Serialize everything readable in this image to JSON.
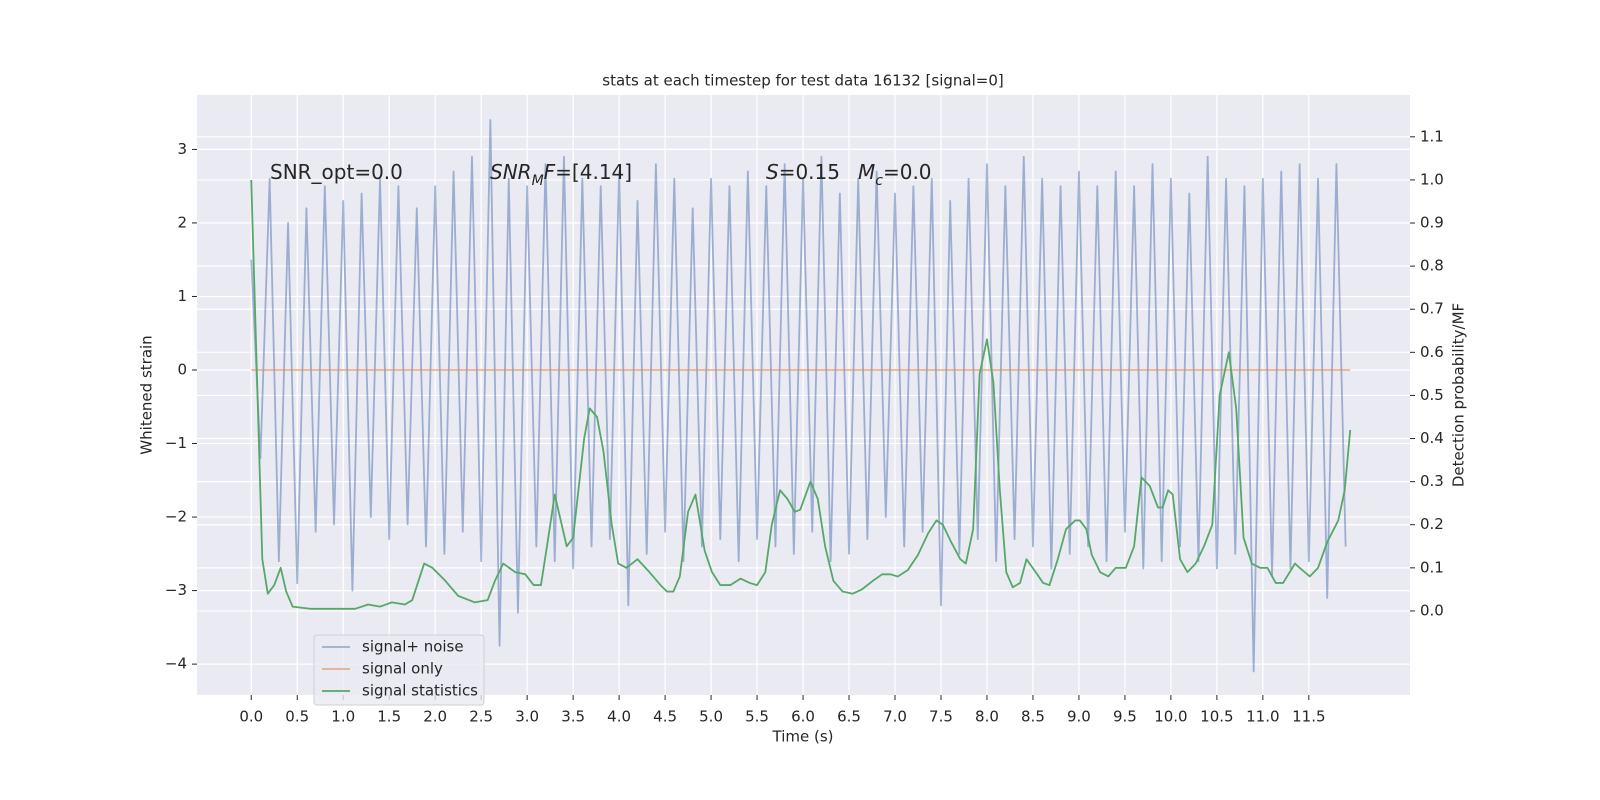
{
  "chart_data": {
    "type": "line",
    "title": "stats at each timestep for test data 16132 [signal=0]",
    "xlabel": "Time (s)",
    "ylabel": "Whitened strain",
    "y2label": "Detection probability/MF",
    "annotations": [
      [
        {
          "text": "SNR_opt=0.0"
        }
      ],
      [
        {
          "text": "SNR",
          "italic": true
        },
        {
          "text": "M",
          "italic": true,
          "sub": true
        },
        {
          "text": "F",
          "italic": true
        },
        {
          "text": "=[4.14]"
        }
      ],
      [
        {
          "text": "S",
          "italic": true
        },
        {
          "text": "=0.15"
        }
      ],
      [
        {
          "text": "M",
          "italic": true
        },
        {
          "text": "c",
          "italic": true,
          "sub": true
        },
        {
          "text": "=0.0"
        }
      ]
    ],
    "xlim": [
      -0.59,
      12.6
    ],
    "ylim": [
      -4.42,
      3.74
    ],
    "y2lim": [
      -0.195,
      1.197
    ],
    "xticks": [
      {
        "value": 0,
        "label": "0.0"
      },
      0.5,
      {
        "value": 1,
        "label": "1.0"
      },
      1.5,
      {
        "value": 2,
        "label": "2.0"
      },
      2.5,
      {
        "value": 3,
        "label": "3.0"
      },
      3.5,
      {
        "value": 4,
        "label": "4.0"
      },
      4.5,
      {
        "value": 5,
        "label": "5.0"
      },
      5.5,
      {
        "value": 6,
        "label": "6.0"
      },
      6.5,
      {
        "value": 7,
        "label": "7.0"
      },
      7.5,
      {
        "value": 8,
        "label": "8.0"
      },
      8.5,
      {
        "value": 9,
        "label": "9.0"
      },
      9.5,
      {
        "value": 10,
        "label": "10.0"
      },
      10.5,
      {
        "value": 11,
        "label": "11.0"
      },
      11.5
    ],
    "yticks": [
      {
        "value": -4,
        "label": "−4"
      },
      {
        "value": -3,
        "label": "−3"
      },
      {
        "value": -2,
        "label": "−2"
      },
      {
        "value": -1,
        "label": "−1"
      },
      0,
      1,
      2,
      3
    ],
    "y2ticks": [
      {
        "value": 0,
        "label": "0.0"
      },
      0.1,
      0.2,
      0.3,
      0.4,
      0.5,
      0.6,
      0.7,
      0.8,
      0.9,
      {
        "value": 1,
        "label": "1.0"
      },
      1.1
    ],
    "grid": true,
    "legend": "lower left",
    "series": [
      {
        "name": "signal+ noise",
        "color": "#4c72b0",
        "opacity": 0.5,
        "x": [
          0,
          0.1,
          0.2,
          0.3,
          0.4,
          0.5,
          0.6,
          0.7,
          0.8,
          0.9,
          1,
          1.1,
          1.2,
          1.3,
          1.4,
          1.5,
          1.6,
          1.7,
          1.8,
          1.9,
          2,
          2.1,
          2.2,
          2.3,
          2.4,
          2.5,
          2.6,
          2.7,
          2.8,
          2.9,
          3,
          3.1,
          3.2,
          3.3,
          3.4,
          3.5,
          3.6,
          3.7,
          3.8,
          3.9,
          4,
          4.1,
          4.2,
          4.3,
          4.4,
          4.5,
          4.6,
          4.7,
          4.8,
          4.9,
          5,
          5.1,
          5.2,
          5.3,
          5.4,
          5.5,
          5.6,
          5.7,
          5.8,
          5.9,
          6,
          6.1,
          6.2,
          6.3,
          6.4,
          6.5,
          6.6,
          6.7,
          6.8,
          6.9,
          7,
          7.1,
          7.2,
          7.3,
          7.4,
          7.5,
          7.6,
          7.7,
          7.8,
          7.9,
          8,
          8.1,
          8.2,
          8.3,
          8.4,
          8.5,
          8.6,
          8.7,
          8.8,
          8.9,
          9,
          9.1,
          9.2,
          9.3,
          9.4,
          9.5,
          9.6,
          9.7,
          9.8,
          9.9,
          10,
          10.1,
          10.2,
          10.3,
          10.4,
          10.5,
          10.6,
          10.7,
          10.8,
          10.9,
          11,
          11.1,
          11.2,
          11.3,
          11.4,
          11.5,
          11.6,
          11.7,
          11.8,
          11.9
        ],
        "values": [
          1.5,
          -1.2,
          2.6,
          -2.6,
          2.0,
          -2.9,
          2.2,
          -2.2,
          2.5,
          -2.1,
          2.3,
          -3.0,
          2.4,
          -2.0,
          2.6,
          -2.3,
          2.5,
          -2.1,
          2.2,
          -2.4,
          2.5,
          -2.5,
          2.7,
          -2.2,
          2.9,
          -2.6,
          3.4,
          -3.75,
          2.6,
          -3.3,
          2.5,
          -2.4,
          2.8,
          -2.6,
          2.9,
          -2.7,
          2.6,
          -2.4,
          2.5,
          -2.3,
          2.7,
          -3.2,
          2.3,
          -2.5,
          2.8,
          -2.2,
          2.6,
          -2.6,
          2.2,
          -2.4,
          2.6,
          -2.3,
          2.5,
          -2.6,
          2.7,
          -2.3,
          2.5,
          -2.4,
          2.8,
          -2.5,
          2.6,
          -2.2,
          2.9,
          -2.6,
          2.4,
          -2.5,
          2.6,
          -2.3,
          2.7,
          -2.0,
          2.4,
          -2.4,
          2.5,
          -2.2,
          2.6,
          -3.2,
          2.3,
          -2.5,
          2.6,
          -2.3,
          2.8,
          -2.6,
          2.5,
          -2.3,
          2.9,
          -2.4,
          2.6,
          -2.7,
          2.5,
          -2.5,
          2.7,
          -2.4,
          2.5,
          -2.6,
          2.7,
          -2.2,
          2.5,
          -2.7,
          2.8,
          -2.6,
          2.6,
          -2.4,
          2.4,
          -2.6,
          2.9,
          -2.7,
          2.6,
          -2.5,
          2.5,
          -4.1,
          2.6,
          -2.8,
          2.7,
          -2.7,
          2.8,
          -2.6,
          2.6,
          -3.1,
          2.8,
          -2.4
        ]
      },
      {
        "name": "signal only",
        "color": "#dd8452",
        "opacity": 0.6,
        "x": [
          0,
          11.95
        ],
        "values": [
          0,
          0
        ]
      },
      {
        "name": "signal statistics",
        "color": "#55a868",
        "axis": "y2",
        "x": [
          0,
          0.12,
          0.18,
          0.25,
          0.32,
          0.38,
          0.45,
          0.64,
          0.97,
          1.13,
          1.27,
          1.4,
          1.53,
          1.67,
          1.75,
          1.88,
          1.97,
          2.11,
          2.25,
          2.43,
          2.57,
          2.65,
          2.74,
          2.87,
          2.98,
          3.07,
          3.15,
          3.23,
          3.3,
          3.43,
          3.5,
          3.62,
          3.68,
          3.76,
          3.83,
          3.92,
          3.99,
          4.08,
          4.2,
          4.33,
          4.45,
          4.52,
          4.59,
          4.66,
          4.75,
          4.83,
          4.93,
          5.01,
          5.1,
          5.21,
          5.32,
          5.42,
          5.5,
          5.59,
          5.66,
          5.75,
          5.83,
          5.91,
          5.97,
          6.08,
          6.16,
          6.24,
          6.33,
          6.43,
          6.54,
          6.64,
          6.76,
          6.86,
          6.95,
          7.03,
          7.14,
          7.25,
          7.36,
          7.45,
          7.52,
          7.61,
          7.71,
          7.77,
          7.85,
          7.92,
          8,
          8.07,
          8.14,
          8.21,
          8.28,
          8.36,
          8.43,
          8.53,
          8.61,
          8.68,
          8.77,
          8.86,
          8.96,
          9.01,
          9.08,
          9.14,
          9.23,
          9.32,
          9.4,
          9.51,
          9.6,
          9.68,
          9.77,
          9.86,
          9.91,
          9.97,
          10.02,
          10.1,
          10.18,
          10.27,
          10.36,
          10.45,
          10.53,
          10.63,
          10.71,
          10.79,
          10.88,
          10.97,
          11.05,
          11.14,
          11.22,
          11.35,
          11.4,
          11.51,
          11.6,
          11.7,
          11.82,
          11.89,
          11.95
        ],
        "values": [
          1.0,
          0.12,
          0.04,
          0.06,
          0.1,
          0.045,
          0.01,
          0.005,
          0.005,
          0.005,
          0.015,
          0.01,
          0.02,
          0.015,
          0.025,
          0.11,
          0.1,
          0.07,
          0.035,
          0.02,
          0.025,
          0.07,
          0.11,
          0.09,
          0.085,
          0.06,
          0.06,
          0.17,
          0.27,
          0.15,
          0.17,
          0.4,
          0.47,
          0.45,
          0.37,
          0.2,
          0.11,
          0.1,
          0.12,
          0.09,
          0.06,
          0.045,
          0.045,
          0.08,
          0.23,
          0.27,
          0.14,
          0.09,
          0.06,
          0.06,
          0.075,
          0.065,
          0.06,
          0.09,
          0.2,
          0.28,
          0.26,
          0.23,
          0.235,
          0.3,
          0.26,
          0.15,
          0.07,
          0.045,
          0.04,
          0.05,
          0.07,
          0.085,
          0.085,
          0.08,
          0.095,
          0.13,
          0.18,
          0.21,
          0.2,
          0.16,
          0.12,
          0.11,
          0.19,
          0.55,
          0.63,
          0.53,
          0.28,
          0.09,
          0.055,
          0.065,
          0.12,
          0.09,
          0.065,
          0.06,
          0.12,
          0.19,
          0.21,
          0.21,
          0.19,
          0.13,
          0.09,
          0.08,
          0.1,
          0.1,
          0.15,
          0.31,
          0.29,
          0.24,
          0.24,
          0.28,
          0.27,
          0.12,
          0.09,
          0.11,
          0.15,
          0.2,
          0.5,
          0.6,
          0.47,
          0.17,
          0.11,
          0.1,
          0.1,
          0.065,
          0.065,
          0.11,
          0.1,
          0.08,
          0.1,
          0.16,
          0.21,
          0.28,
          0.42
        ]
      }
    ]
  }
}
